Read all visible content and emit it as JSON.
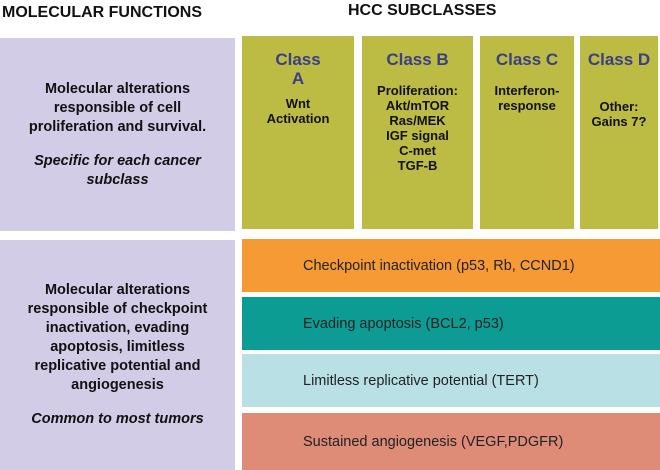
{
  "headers": {
    "left": "MOLECULAR FUNCTIONS",
    "right": "HCC SUBCLASSES"
  },
  "left_panels": [
    {
      "main_lines": [
        "Molecular alterations",
        "responsible of cell",
        "proliferation and survival."
      ],
      "italic_lines": [
        "Specific for each cancer",
        "subclass"
      ]
    },
    {
      "main_lines": [
        "Molecular alterations",
        "responsible of checkpoint",
        "inactivation, evading",
        "apoptosis, limitless",
        "replicative potential and",
        "angiogenesis"
      ],
      "italic_lines": [
        "Common to most tumors"
      ]
    }
  ],
  "classes": [
    {
      "name_lines": [
        "Class",
        "A"
      ],
      "desc_lines": [
        "Wnt",
        "Activation"
      ]
    },
    {
      "name_lines": [
        "Class B"
      ],
      "desc_lines": [
        "Proliferation:",
        "Akt/mTOR",
        "Ras/MEK",
        "IGF signal",
        "C-met",
        "TGF-B"
      ]
    },
    {
      "name_lines": [
        "Class C"
      ],
      "desc_lines": [
        "Interferon-",
        "response"
      ]
    },
    {
      "name_lines": [
        "Class D"
      ],
      "desc_lines": [
        "Other:",
        "Gains 7?"
      ]
    }
  ],
  "bands": [
    {
      "label": "Checkpoint inactivation (p53, Rb, CCND1)"
    },
    {
      "label": "Evading apoptosis (BCL2, p53)"
    },
    {
      "label": "Limitless replicative potential (TERT)"
    },
    {
      "label": "Sustained angiogenesis (VEGF,PDGFR)"
    }
  ],
  "colors": {
    "left_panel": "#d2cce7",
    "class_box": "#bcbb43",
    "class_title": "#3a3f86",
    "band_checkpoint": "#f69a36",
    "band_apoptosis": "#0c9c93",
    "band_replicative": "#b9e1e5",
    "band_angiogenesis": "#de8b78"
  }
}
